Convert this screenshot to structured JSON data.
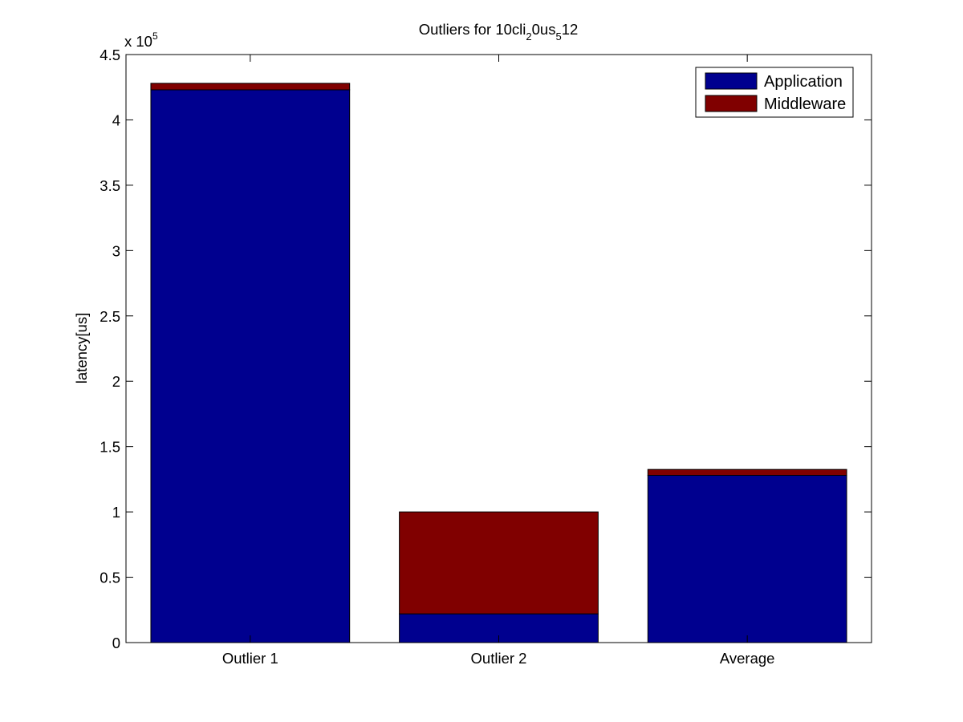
{
  "chart_data": {
    "type": "bar",
    "stacked": true,
    "title_parts": {
      "p1": "Outliers for 10cli",
      "s1": "2",
      "p2": "0us",
      "s2": "5",
      "p3": "12"
    },
    "xlabel": "",
    "ylabel": "latency[us]",
    "y_multiplier": {
      "base": "x 10",
      "exponent": "5"
    },
    "categories": [
      "Outlier 1",
      "Outlier 2",
      "Average"
    ],
    "series": [
      {
        "name": "Application",
        "color": "#00008f",
        "values": [
          423000,
          22000,
          128000
        ]
      },
      {
        "name": "Middleware",
        "color": "#800000",
        "values": [
          5000,
          78000,
          4500
        ]
      }
    ],
    "ylim": [
      0,
      450000
    ],
    "ytick_values": [
      0,
      50000,
      100000,
      150000,
      200000,
      250000,
      300000,
      350000,
      400000,
      450000
    ],
    "ytick_labels": [
      "0",
      "0.5",
      "1",
      "1.5",
      "2",
      "2.5",
      "3",
      "3.5",
      "4",
      "4.5"
    ],
    "legend_position": "top-right",
    "grid": false
  }
}
